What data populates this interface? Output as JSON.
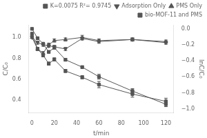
{
  "chart_data": {
    "type": "line",
    "xlabel": "t/min",
    "ylabel": "C/C₀",
    "y2label": "lnC/C₀",
    "xlim": [
      -3,
      127
    ],
    "ylim": [
      0.28,
      1.12
    ],
    "y2lim": [
      -1.05,
      0.05
    ],
    "xticks": [
      0,
      20,
      40,
      60,
      80,
      100,
      120
    ],
    "yticks": [
      0.4,
      0.6,
      0.8,
      {
        "value": 1.0,
        "label": "1.0"
      }
    ],
    "y2ticks": [
      {
        "value": -1.0,
        "label": "−1.0"
      },
      {
        "value": -0.8,
        "label": "−0.8"
      },
      {
        "value": -0.6,
        "label": "−0.6"
      },
      {
        "value": -0.4,
        "label": "−0.4"
      },
      {
        "value": -0.2,
        "label": "−0.2"
      },
      {
        "value": 0.0,
        "label": "0.0"
      }
    ],
    "grid": false,
    "legend": "upper right",
    "x": [
      0,
      5,
      10,
      15,
      20,
      30,
      45,
      60,
      90,
      120
    ],
    "series": [
      {
        "name": "K=0.0075 R²= 0.9745",
        "axis": "y2",
        "color": "#555555",
        "marker": "square",
        "values": [
          0.0,
          -0.117,
          -0.186,
          -0.288,
          -0.236,
          -0.386,
          -0.478,
          -0.598,
          -0.777,
          -0.942
        ],
        "errors": [
          0.0,
          0.015,
          0.015,
          0.015,
          0.015,
          0.015,
          0.015,
          0.03,
          0.03,
          0.03
        ]
      },
      {
        "name": "Adsorption Only",
        "color": "#555555",
        "marker": "triangle_down",
        "values": [
          1.0,
          0.95,
          0.93,
          0.92,
          0.91,
          0.89,
          0.99,
          0.96,
          0.98,
          0.95
        ],
        "errors": [
          0.0,
          0.015,
          0.015,
          0.015,
          0.015,
          0.015,
          0.015,
          0.015,
          0.015,
          0.015
        ]
      },
      {
        "name": "PMS Only",
        "color": "#555555",
        "marker": "triangle_up",
        "values": [
          1.0,
          0.89,
          0.85,
          0.93,
          0.97,
          0.98,
          1.0,
          0.97,
          0.98,
          0.96
        ],
        "errors": [
          0.0,
          0.015,
          0.015,
          0.015,
          0.015,
          0.015,
          0.02,
          0.015,
          0.015,
          0.015
        ]
      },
      {
        "name": "bio-MOF-11 and PMS",
        "color": "#555555",
        "marker": "square",
        "values": [
          1.03,
          0.89,
          0.83,
          0.75,
          0.79,
          0.68,
          0.62,
          0.55,
          0.46,
          0.39
        ],
        "errors": [
          0.02,
          0.015,
          0.015,
          0.015,
          0.015,
          0.015,
          0.015,
          0.03,
          0.03,
          0.03
        ]
      }
    ]
  }
}
